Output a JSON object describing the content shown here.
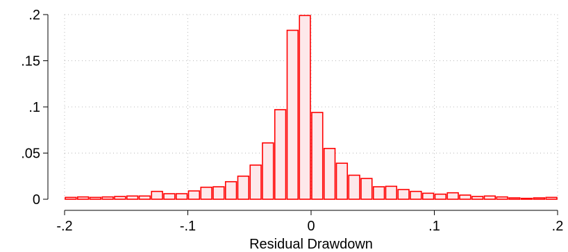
{
  "chart_data": {
    "type": "bar",
    "subtype": "histogram",
    "title": "",
    "xlabel": "Residual Drawdown",
    "ylabel": "",
    "xlim": [
      -0.2,
      0.2
    ],
    "ylim": [
      0,
      0.2
    ],
    "x_ticks": [
      {
        "value": -0.2,
        "label": "-.2"
      },
      {
        "value": -0.1,
        "label": "-.1"
      },
      {
        "value": 0,
        "label": "0"
      },
      {
        "value": 0.1,
        "label": ".1"
      },
      {
        "value": 0.2,
        "label": ".2"
      }
    ],
    "y_ticks": [
      {
        "value": 0,
        "label": "0"
      },
      {
        "value": 0.05,
        "label": ".05"
      },
      {
        "value": 0.1,
        "label": ".1"
      },
      {
        "value": 0.15,
        "label": ".15"
      },
      {
        "value": 0.2,
        "label": ".2"
      }
    ],
    "grid": true,
    "grid_style": "dotted",
    "bar_fill": "#fde8ea",
    "bar_edge": "#ff0000",
    "bins": [
      {
        "x0": -0.2,
        "x1": -0.19,
        "value": 0.002
      },
      {
        "x0": -0.19,
        "x1": -0.18,
        "value": 0.0025
      },
      {
        "x0": -0.18,
        "x1": -0.17,
        "value": 0.002
      },
      {
        "x0": -0.17,
        "x1": -0.16,
        "value": 0.0025
      },
      {
        "x0": -0.16,
        "x1": -0.15,
        "value": 0.003
      },
      {
        "x0": -0.15,
        "x1": -0.14,
        "value": 0.0035
      },
      {
        "x0": -0.14,
        "x1": -0.13,
        "value": 0.0035
      },
      {
        "x0": -0.13,
        "x1": -0.12,
        "value": 0.0085
      },
      {
        "x0": -0.12,
        "x1": -0.11,
        "value": 0.006
      },
      {
        "x0": -0.11,
        "x1": -0.1,
        "value": 0.006
      },
      {
        "x0": -0.1,
        "x1": -0.09,
        "value": 0.009
      },
      {
        "x0": -0.09,
        "x1": -0.08,
        "value": 0.013
      },
      {
        "x0": -0.08,
        "x1": -0.07,
        "value": 0.0135
      },
      {
        "x0": -0.07,
        "x1": -0.06,
        "value": 0.019
      },
      {
        "x0": -0.06,
        "x1": -0.05,
        "value": 0.025
      },
      {
        "x0": -0.05,
        "x1": -0.04,
        "value": 0.037
      },
      {
        "x0": -0.04,
        "x1": -0.03,
        "value": 0.061
      },
      {
        "x0": -0.03,
        "x1": -0.02,
        "value": 0.097
      },
      {
        "x0": -0.02,
        "x1": -0.01,
        "value": 0.183
      },
      {
        "x0": -0.01,
        "x1": 0.0,
        "value": 0.199
      },
      {
        "x0": 0.0,
        "x1": 0.01,
        "value": 0.094
      },
      {
        "x0": 0.01,
        "x1": 0.02,
        "value": 0.055
      },
      {
        "x0": 0.02,
        "x1": 0.03,
        "value": 0.039
      },
      {
        "x0": 0.03,
        "x1": 0.04,
        "value": 0.026
      },
      {
        "x0": 0.04,
        "x1": 0.05,
        "value": 0.0225
      },
      {
        "x0": 0.05,
        "x1": 0.06,
        "value": 0.0135
      },
      {
        "x0": 0.06,
        "x1": 0.07,
        "value": 0.014
      },
      {
        "x0": 0.07,
        "x1": 0.08,
        "value": 0.0105
      },
      {
        "x0": 0.08,
        "x1": 0.09,
        "value": 0.0085
      },
      {
        "x0": 0.09,
        "x1": 0.1,
        "value": 0.0065
      },
      {
        "x0": 0.1,
        "x1": 0.11,
        "value": 0.0055
      },
      {
        "x0": 0.11,
        "x1": 0.12,
        "value": 0.007
      },
      {
        "x0": 0.12,
        "x1": 0.13,
        "value": 0.0045
      },
      {
        "x0": 0.13,
        "x1": 0.14,
        "value": 0.003
      },
      {
        "x0": 0.14,
        "x1": 0.15,
        "value": 0.0035
      },
      {
        "x0": 0.15,
        "x1": 0.16,
        "value": 0.0025
      },
      {
        "x0": 0.16,
        "x1": 0.17,
        "value": 0.0015
      },
      {
        "x0": 0.17,
        "x1": 0.18,
        "value": 0.001
      },
      {
        "x0": 0.18,
        "x1": 0.19,
        "value": 0.0015
      },
      {
        "x0": 0.19,
        "x1": 0.2,
        "value": 0.002
      }
    ]
  }
}
